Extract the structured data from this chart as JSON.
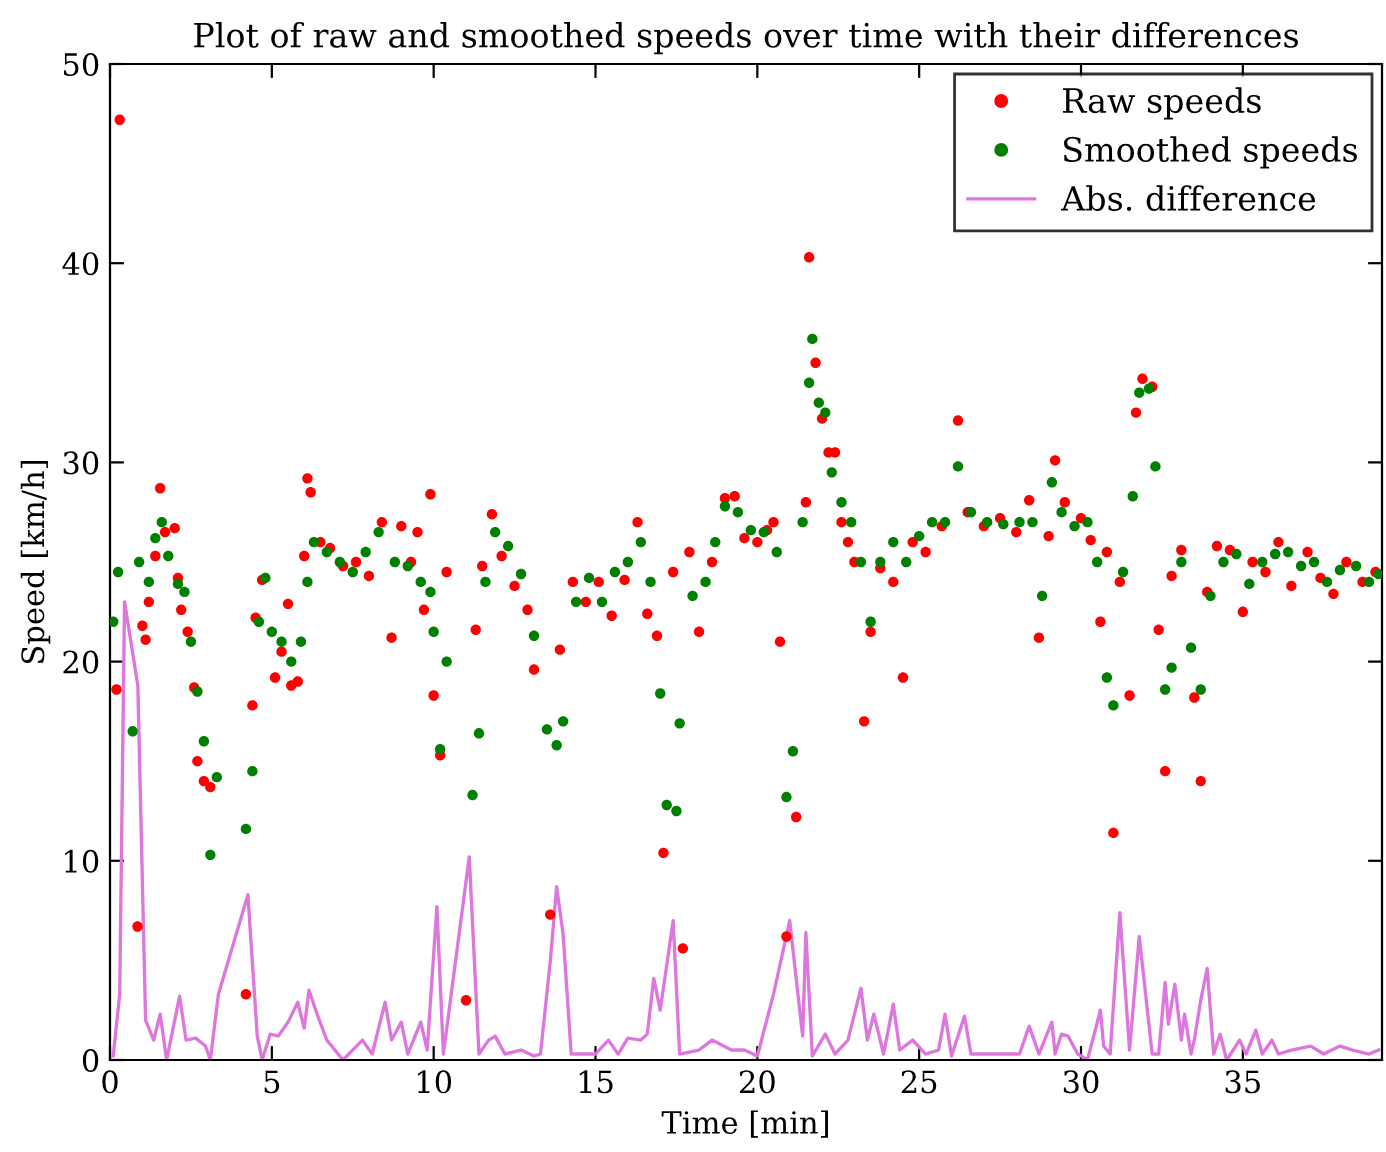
{
  "chart_data": {
    "type": "scatter",
    "title": "Plot of raw and smoothed speeds over time with their differences",
    "xlabel": "Time [min]",
    "ylabel": "Speed [km/h]",
    "xlim": [
      0,
      39.3
    ],
    "ylim": [
      0,
      50
    ],
    "xticks": [
      0,
      5,
      10,
      15,
      20,
      25,
      30,
      35
    ],
    "yticks": [
      0,
      10,
      20,
      30,
      40,
      50
    ],
    "grid": false,
    "legend": "top right",
    "series": [
      {
        "name": "Raw speeds",
        "marker": "circle",
        "color": "#ff0000",
        "x": [
          0.2,
          0.3,
          0.85,
          1.0,
          1.1,
          1.2,
          1.4,
          1.55,
          1.7,
          2.0,
          2.1,
          2.2,
          2.4,
          2.6,
          2.7,
          2.9,
          3.1,
          4.2,
          4.4,
          4.5,
          4.7,
          5.1,
          5.3,
          5.5,
          5.6,
          5.8,
          6.0,
          6.1,
          6.2,
          6.5,
          6.8,
          7.2,
          7.6,
          8.0,
          8.4,
          8.7,
          9.0,
          9.3,
          9.5,
          9.7,
          9.9,
          10.0,
          10.2,
          10.4,
          11.0,
          11.3,
          11.5,
          11.8,
          12.1,
          12.5,
          12.9,
          13.1,
          13.6,
          13.9,
          14.3,
          14.7,
          15.1,
          15.5,
          15.9,
          16.3,
          16.6,
          16.9,
          17.1,
          17.4,
          17.7,
          17.9,
          18.2,
          18.6,
          19.0,
          19.3,
          19.6,
          20.0,
          20.3,
          20.5,
          20.7,
          20.9,
          21.2,
          21.5,
          21.6,
          21.8,
          22.0,
          22.2,
          22.4,
          22.6,
          22.8,
          23.0,
          23.3,
          23.5,
          23.8,
          24.2,
          24.5,
          24.8,
          25.2,
          25.7,
          26.2,
          26.5,
          27.0,
          27.5,
          28.0,
          28.4,
          28.7,
          29.0,
          29.2,
          29.5,
          30.0,
          30.3,
          30.6,
          30.8,
          31.0,
          31.2,
          31.5,
          31.7,
          31.9,
          32.2,
          32.4,
          32.6,
          32.8,
          33.1,
          33.5,
          33.7,
          33.9,
          34.2,
          34.6,
          35.0,
          35.3,
          35.7,
          36.1,
          36.5,
          37.0,
          37.4,
          37.8,
          38.2,
          38.7,
          39.1
        ],
        "values": [
          18.6,
          47.2,
          6.7,
          21.8,
          21.1,
          23.0,
          25.3,
          28.7,
          26.5,
          26.7,
          24.2,
          22.6,
          21.5,
          18.7,
          15.0,
          14.0,
          13.7,
          3.3,
          17.8,
          22.2,
          24.1,
          19.2,
          20.5,
          22.9,
          18.8,
          19.0,
          25.3,
          29.2,
          28.5,
          26.0,
          25.7,
          24.8,
          25.0,
          24.3,
          27.0,
          21.2,
          26.8,
          25.0,
          26.5,
          22.6,
          28.4,
          18.3,
          15.3,
          24.5,
          3.0,
          21.6,
          24.8,
          27.4,
          25.3,
          23.8,
          22.6,
          19.6,
          7.3,
          20.6,
          24.0,
          23.0,
          24.0,
          22.3,
          24.1,
          27.0,
          22.4,
          21.3,
          10.4,
          24.5,
          5.6,
          25.5,
          21.5,
          25.0,
          28.2,
          28.3,
          26.2,
          26.0,
          26.6,
          27.0,
          21.0,
          6.2,
          12.2,
          28.0,
          40.3,
          35.0,
          32.2,
          30.5,
          30.5,
          27.0,
          26.0,
          25.0,
          17.0,
          21.5,
          24.7,
          24.0,
          19.2,
          26.0,
          25.5,
          26.8,
          32.1,
          27.5,
          26.8,
          27.2,
          26.5,
          28.1,
          21.2,
          26.3,
          30.1,
          28.0,
          27.2,
          26.1,
          22.0,
          25.5,
          11.4,
          24.0,
          18.3,
          32.5,
          34.2,
          33.8,
          21.6,
          14.5,
          24.3,
          25.6,
          18.2,
          14.0,
          23.5,
          25.8,
          25.6,
          22.5,
          25.0,
          24.5,
          26.0,
          23.8,
          25.5,
          24.2,
          23.4,
          25.0,
          24.0,
          24.5
        ]
      },
      {
        "name": "Smoothed speeds",
        "marker": "circle",
        "color": "#008000",
        "x": [
          0.1,
          0.25,
          0.7,
          0.9,
          1.2,
          1.4,
          1.6,
          1.8,
          2.1,
          2.3,
          2.5,
          2.7,
          2.9,
          3.1,
          3.3,
          4.2,
          4.4,
          4.6,
          4.8,
          5.0,
          5.3,
          5.6,
          5.9,
          6.1,
          6.3,
          6.7,
          7.1,
          7.5,
          7.9,
          8.3,
          8.8,
          9.2,
          9.6,
          9.9,
          10.0,
          10.2,
          10.4,
          11.2,
          11.4,
          11.6,
          11.9,
          12.3,
          12.7,
          13.1,
          13.5,
          13.8,
          14.0,
          14.4,
          14.8,
          15.2,
          15.6,
          16.0,
          16.4,
          16.7,
          17.0,
          17.2,
          17.5,
          17.6,
          18.0,
          18.4,
          18.7,
          19.0,
          19.4,
          19.8,
          20.2,
          20.6,
          20.9,
          21.1,
          21.4,
          21.6,
          21.7,
          21.9,
          22.1,
          22.3,
          22.6,
          22.9,
          23.2,
          23.5,
          23.8,
          24.2,
          24.6,
          25.0,
          25.4,
          25.8,
          26.2,
          26.6,
          27.1,
          27.6,
          28.1,
          28.5,
          28.8,
          29.1,
          29.4,
          29.8,
          30.2,
          30.5,
          30.8,
          31.0,
          31.3,
          31.6,
          31.8,
          32.1,
          32.3,
          32.6,
          32.8,
          33.1,
          33.4,
          33.7,
          34.0,
          34.4,
          34.8,
          35.2,
          35.6,
          36.0,
          36.4,
          36.8,
          37.2,
          37.6,
          38.0,
          38.5,
          38.9,
          39.2
        ],
        "values": [
          22.0,
          24.5,
          16.5,
          25.0,
          24.0,
          26.2,
          27.0,
          25.3,
          23.9,
          23.5,
          21.0,
          18.5,
          16.0,
          10.3,
          14.2,
          11.6,
          14.5,
          22.0,
          24.2,
          21.5,
          21.0,
          20.0,
          21.0,
          24.0,
          26.0,
          25.5,
          25.0,
          24.5,
          25.5,
          26.5,
          25.0,
          24.8,
          24.0,
          23.5,
          21.5,
          15.6,
          20.0,
          13.3,
          16.4,
          24.0,
          26.5,
          25.8,
          24.4,
          21.3,
          16.6,
          15.8,
          17.0,
          23.0,
          24.2,
          23.0,
          24.5,
          25.0,
          26.0,
          24.0,
          18.4,
          12.8,
          12.5,
          16.9,
          23.3,
          24.0,
          26.0,
          27.8,
          27.5,
          26.6,
          26.5,
          25.5,
          13.2,
          15.5,
          27.0,
          34.0,
          36.2,
          33.0,
          32.5,
          29.5,
          28.0,
          27.0,
          25.0,
          22.0,
          25.0,
          26.0,
          25.0,
          26.3,
          27.0,
          27.0,
          29.8,
          27.5,
          27.0,
          26.9,
          27.0,
          27.0,
          23.3,
          29.0,
          27.5,
          26.8,
          27.0,
          25.0,
          19.2,
          17.8,
          24.5,
          28.3,
          33.5,
          33.7,
          29.8,
          18.6,
          19.7,
          25.0,
          20.7,
          18.6,
          23.3,
          25.0,
          25.4,
          23.9,
          25.0,
          25.4,
          25.5,
          24.8,
          25.0,
          24.0,
          24.6,
          24.8,
          24.0,
          24.4
        ]
      },
      {
        "name": "Abs. difference",
        "type": "line",
        "marker": "none",
        "line_style": "solid",
        "color": "#dd77dd",
        "x": [
          0.1,
          0.3,
          0.45,
          0.86,
          1.1,
          1.35,
          1.55,
          1.75,
          2.15,
          2.35,
          2.65,
          2.95,
          3.1,
          3.35,
          4.26,
          4.55,
          4.7,
          4.95,
          5.2,
          5.5,
          5.8,
          6.0,
          6.15,
          6.4,
          6.7,
          7.2,
          7.8,
          8.1,
          8.5,
          8.7,
          9.0,
          9.2,
          9.6,
          9.8,
          10.1,
          10.3,
          11.1,
          11.4,
          11.7,
          11.9,
          12.2,
          12.7,
          13.1,
          13.3,
          13.6,
          13.8,
          14.0,
          14.25,
          15.0,
          15.4,
          15.7,
          16.0,
          16.4,
          16.6,
          16.8,
          17.0,
          17.4,
          17.6,
          18.2,
          18.6,
          19.2,
          19.6,
          20.0,
          20.5,
          21.0,
          21.4,
          21.5,
          21.7,
          22.1,
          22.4,
          22.8,
          23.2,
          23.4,
          23.6,
          23.9,
          24.2,
          24.4,
          24.8,
          25.2,
          25.6,
          25.8,
          26.0,
          26.1,
          26.4,
          26.6,
          27.4,
          28.1,
          28.4,
          28.7,
          29.1,
          29.2,
          29.4,
          29.6,
          29.9,
          30.2,
          30.6,
          30.7,
          30.9,
          31.2,
          31.5,
          31.8,
          32.2,
          32.4,
          32.6,
          32.7,
          32.9,
          33.1,
          33.2,
          33.4,
          33.5,
          33.7,
          33.9,
          34.1,
          34.3,
          34.5,
          34.9,
          35.1,
          35.4,
          35.6,
          35.9,
          36.1,
          36.5,
          37.1,
          37.5,
          38.0,
          38.4,
          38.9,
          39.2
        ],
        "values": [
          0.2,
          3.3,
          23.0,
          18.8,
          2.0,
          1.0,
          2.3,
          0,
          3.2,
          1.0,
          1.1,
          0.7,
          0,
          3.3,
          8.3,
          1.2,
          0,
          1.3,
          1.2,
          1.9,
          2.9,
          1.6,
          3.5,
          2.3,
          1.0,
          0,
          1.0,
          0.3,
          2.9,
          1.0,
          1.9,
          0.3,
          1.9,
          0.5,
          7.7,
          0.3,
          10.2,
          0.3,
          1.0,
          1.2,
          0.3,
          0.5,
          0.2,
          0.3,
          4.9,
          8.7,
          6.3,
          0.3,
          0.3,
          1.0,
          0.3,
          1.1,
          1.0,
          1.3,
          4.1,
          2.5,
          7.0,
          0.3,
          0.5,
          1.0,
          0.5,
          0.5,
          0.2,
          3.3,
          7.0,
          1.2,
          6.4,
          0.2,
          1.3,
          0.3,
          1.0,
          3.6,
          1.0,
          2.3,
          0.3,
          2.8,
          0.5,
          1.0,
          0.3,
          0.5,
          2.3,
          0.2,
          0.7,
          2.2,
          0.3,
          0.3,
          0.3,
          1.7,
          0.3,
          1.9,
          0.3,
          1.3,
          1.2,
          0.3,
          0,
          2.5,
          0.7,
          0.3,
          7.4,
          0.5,
          6.2,
          0.3,
          0.3,
          3.9,
          1.8,
          3.8,
          1.0,
          2.3,
          0.3,
          1.0,
          3.0,
          4.6,
          0.3,
          1.3,
          0,
          1.0,
          0.3,
          1.5,
          0.3,
          1.0,
          0.3,
          0.5,
          0.7,
          0.3,
          0.7,
          0.5,
          0.3,
          0.5
        ]
      }
    ]
  }
}
